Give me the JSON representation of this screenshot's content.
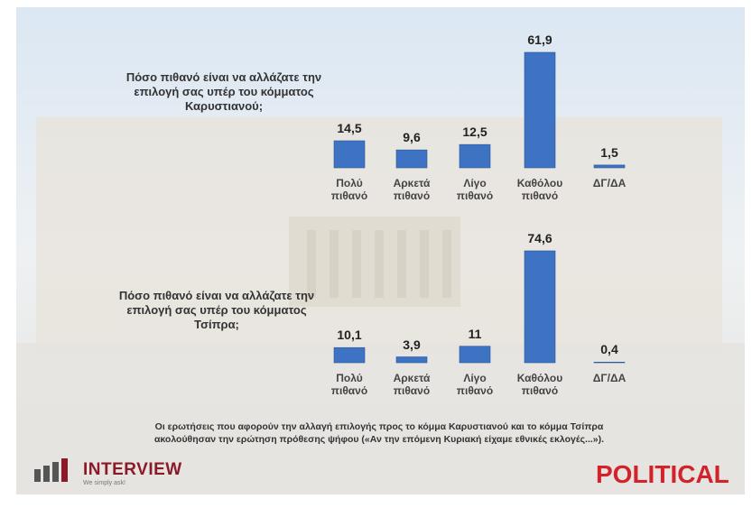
{
  "chart_data": [
    {
      "type": "bar",
      "title": "Πόσο πιθανό είναι να αλλάζατε την επιλογή σας υπέρ του κόμματος Καρυστιανού;",
      "categories": [
        "Πολύ πιθανό",
        "Αρκετά πιθανό",
        "Λίγο πιθανό",
        "Καθόλου πιθανό",
        "ΔΓ/ΔΑ"
      ],
      "values": [
        14.5,
        9.6,
        12.5,
        61.9,
        1.5
      ],
      "value_labels": [
        "14,5",
        "9,6",
        "12,5",
        "61,9",
        "1,5"
      ],
      "color": "#3d73c2"
    },
    {
      "type": "bar",
      "title": "Πόσο πιθανό είναι να αλλάζατε την επιλογή σας υπέρ του κόμματος Τσίπρα;",
      "categories": [
        "Πολύ πιθανό",
        "Αρκετά πιθανό",
        "Λίγο πιθανό",
        "Καθόλου πιθανό",
        "ΔΓ/ΔΑ"
      ],
      "values": [
        10.1,
        3.9,
        11,
        74.6,
        0.4
      ],
      "value_labels": [
        "10,1",
        "3,9",
        "11",
        "74,6",
        "0,4"
      ],
      "color": "#3d73c2"
    }
  ],
  "footnote": "Οι ερωτήσεις που αφορούν την αλλαγή επιλογής προς το κόμμα Καρυστιανού και το κόμμα Τσίπρα ακολούθησαν την ερώτηση πρόθεσης ψήφου («Αν την επόμενη Κυριακή είχαμε εθνικές εκλογές...»).",
  "logo_left": {
    "name": "INTERVIEW",
    "tagline": "We simply ask!"
  },
  "logo_right": "POLITICAL"
}
